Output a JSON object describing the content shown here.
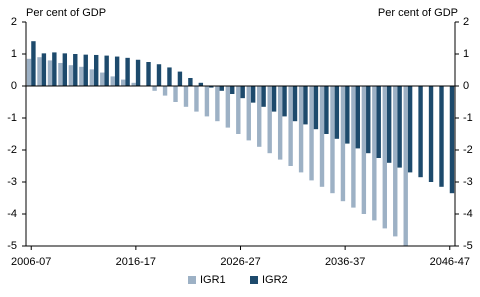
{
  "chart_data": {
    "type": "bar",
    "y_label": "Per cent of GDP",
    "y2_label": "Per cent of GDP",
    "categories": [
      "2006-07",
      null,
      null,
      null,
      null,
      null,
      null,
      null,
      null,
      null,
      "2016-17",
      null,
      null,
      null,
      null,
      null,
      null,
      null,
      null,
      null,
      "2026-27",
      null,
      null,
      null,
      null,
      null,
      null,
      null,
      null,
      null,
      "2036-37",
      null,
      null,
      null,
      null,
      null,
      null,
      null,
      null,
      null,
      "2046-47"
    ],
    "series": [
      {
        "name": "IGR1",
        "color": "#9db1c5",
        "values": [
          0.85,
          0.9,
          0.8,
          0.72,
          0.65,
          0.6,
          0.52,
          0.42,
          0.3,
          0.2,
          0.1,
          0.0,
          -0.15,
          -0.3,
          -0.5,
          -0.65,
          -0.8,
          -0.95,
          -1.1,
          -1.3,
          -1.5,
          -1.7,
          -1.9,
          -2.1,
          -2.3,
          -2.5,
          -2.7,
          -2.95,
          -3.15,
          -3.35,
          -3.6,
          -3.8,
          -4.0,
          -4.2,
          -4.45,
          -4.7,
          -5.0,
          null,
          null,
          null,
          null
        ]
      },
      {
        "name": "IGR2",
        "color": "#1d4a6c",
        "values": [
          1.4,
          1.02,
          1.05,
          1.02,
          1.0,
          0.98,
          0.97,
          0.95,
          0.92,
          0.88,
          0.82,
          0.75,
          0.68,
          0.58,
          0.45,
          0.25,
          0.1,
          -0.05,
          -0.15,
          -0.25,
          -0.38,
          -0.52,
          -0.65,
          -0.8,
          -0.95,
          -1.1,
          -1.2,
          -1.35,
          -1.5,
          -1.65,
          -1.8,
          -1.95,
          -2.1,
          -2.25,
          -2.4,
          -2.55,
          -2.7,
          -2.85,
          -3.0,
          -3.15,
          -3.35
        ]
      }
    ],
    "ylim": [
      -5,
      2
    ],
    "yticks": [
      -5,
      -4,
      -3,
      -2,
      -1,
      0,
      1,
      2
    ],
    "y2lim": [
      -5,
      2
    ],
    "y2ticks": [
      -5,
      -4,
      -3,
      -2,
      -1,
      0,
      1,
      2
    ],
    "legend": "bottom"
  }
}
